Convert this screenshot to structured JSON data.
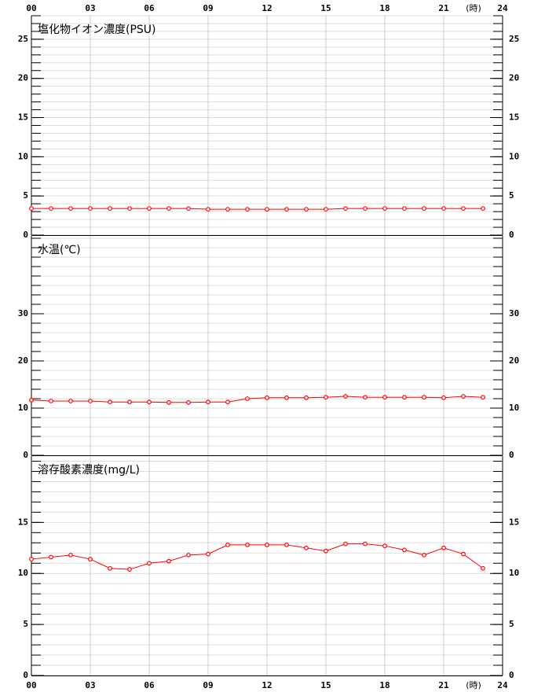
{
  "chart_data": [
    {
      "type": "line",
      "title": "塩化物イオン濃度(PSU)",
      "x": [
        0,
        1,
        2,
        3,
        4,
        5,
        6,
        7,
        8,
        9,
        10,
        11,
        12,
        13,
        14,
        15,
        16,
        17,
        18,
        19,
        20,
        21,
        22,
        23
      ],
      "values": [
        3.4,
        3.4,
        3.4,
        3.4,
        3.4,
        3.4,
        3.4,
        3.4,
        3.4,
        3.3,
        3.3,
        3.3,
        3.3,
        3.3,
        3.3,
        3.3,
        3.4,
        3.4,
        3.4,
        3.4,
        3.4,
        3.4,
        3.4,
        3.4
      ],
      "color": "#ff0000",
      "xlim": [
        0,
        24
      ],
      "xticks": [
        {
          "value": 0,
          "label": "00"
        },
        {
          "value": 3,
          "label": "03"
        },
        {
          "value": 6,
          "label": "06"
        },
        {
          "value": 9,
          "label": "09"
        },
        12,
        15,
        18,
        21,
        24
      ],
      "xaxis": "top",
      "xunit": "(時)",
      "ylim": [
        0,
        28
      ],
      "yticks": [
        0,
        5,
        10,
        15,
        20,
        25
      ],
      "minor_ystep": 1,
      "grid": true
    },
    {
      "type": "line",
      "title": "水温(℃)",
      "x": [
        0,
        1,
        2,
        3,
        4,
        5,
        6,
        7,
        8,
        9,
        10,
        11,
        12,
        13,
        14,
        15,
        16,
        17,
        18,
        19,
        20,
        21,
        22,
        23
      ],
      "values": [
        11.7,
        11.5,
        11.5,
        11.5,
        11.3,
        11.3,
        11.3,
        11.2,
        11.2,
        11.3,
        11.3,
        12.0,
        12.2,
        12.2,
        12.2,
        12.3,
        12.5,
        12.3,
        12.3,
        12.3,
        12.3,
        12.2,
        12.5,
        12.3
      ],
      "color": "#ff0000",
      "xlim": [
        0,
        24
      ],
      "xticks": [
        0,
        3,
        6,
        9,
        12,
        15,
        18,
        21,
        24
      ],
      "ylim": [
        0,
        46.5
      ],
      "yticks": [
        0,
        10,
        20,
        30
      ],
      "minor_ystep": 2,
      "grid": true
    },
    {
      "type": "line",
      "title": "溶存酸素濃度(mg/L)",
      "x": [
        0,
        1,
        2,
        3,
        4,
        5,
        6,
        7,
        8,
        9,
        10,
        11,
        12,
        13,
        14,
        15,
        16,
        17,
        18,
        19,
        20,
        21,
        22,
        23
      ],
      "values": [
        11.4,
        11.6,
        11.8,
        11.4,
        10.5,
        10.4,
        11.0,
        11.2,
        11.8,
        11.9,
        12.8,
        12.8,
        12.8,
        12.8,
        12.5,
        12.2,
        12.9,
        12.9,
        12.7,
        12.3,
        11.8,
        12.5,
        11.9,
        10.5
      ],
      "color": "#ff0000",
      "xlim": [
        0,
        24
      ],
      "xticks": [
        {
          "value": 0,
          "label": "00"
        },
        {
          "value": 3,
          "label": "03"
        },
        {
          "value": 6,
          "label": "06"
        },
        {
          "value": 9,
          "label": "09"
        },
        12,
        15,
        18,
        21,
        24
      ],
      "xaxis": "bottom",
      "xunit": "(時)",
      "ylim": [
        0,
        21.5
      ],
      "yticks": [
        0,
        5,
        10,
        15
      ],
      "minor_ystep": 1,
      "grid": true
    }
  ]
}
